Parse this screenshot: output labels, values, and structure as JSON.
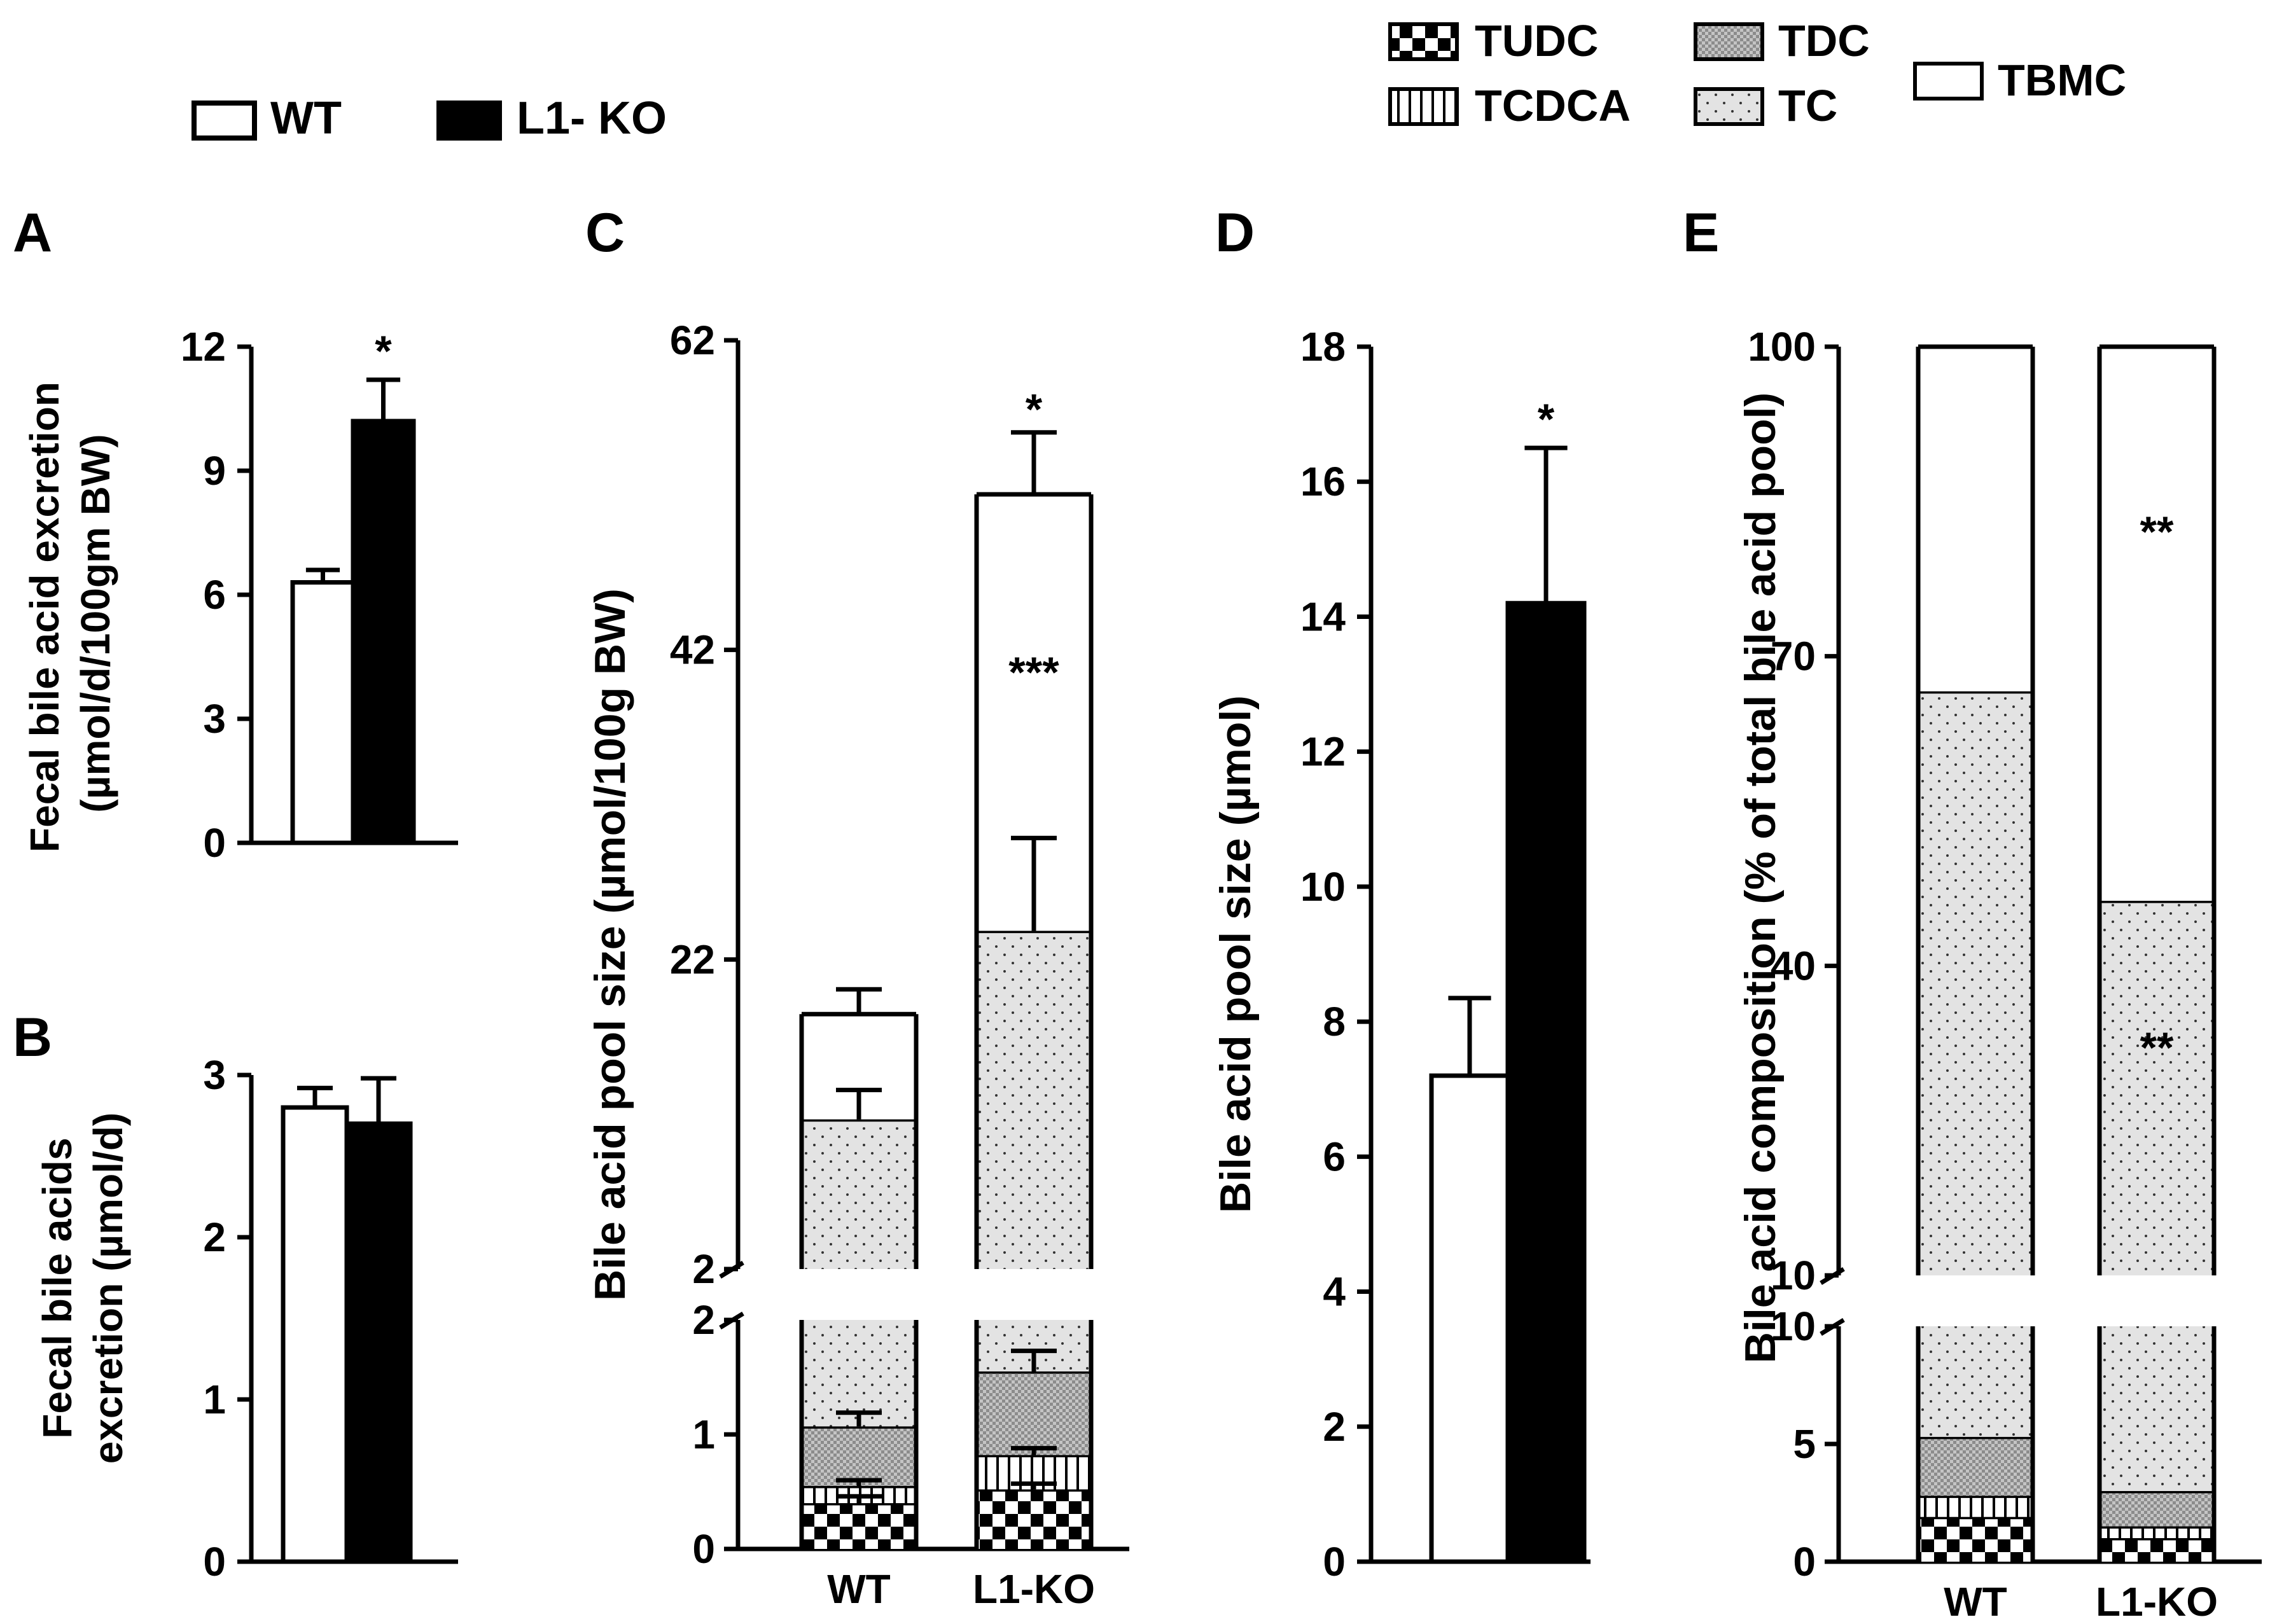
{
  "colors": {
    "wt": "#ffffff",
    "ko": "#000000",
    "ink": "#000000"
  },
  "legend_groups": {
    "items": [
      {
        "key": "wt",
        "label": "WT",
        "icon": "white-box-icon"
      },
      {
        "key": "ko",
        "label": "L1- KO",
        "icon": "black-box-icon"
      }
    ]
  },
  "legend_species": {
    "items": [
      {
        "key": "TUDC",
        "label": "TUDC",
        "icon": "checker-pattern-icon"
      },
      {
        "key": "TCDCA",
        "label": "TCDCA",
        "icon": "vertical-lines-pattern-icon"
      },
      {
        "key": "TDC",
        "label": "TDC",
        "icon": "crosshatch-gray-pattern-icon"
      },
      {
        "key": "TC",
        "label": "TC",
        "icon": "dotted-pattern-icon"
      },
      {
        "key": "TBMC",
        "label": "TBMC",
        "icon": "white-box-icon"
      }
    ]
  },
  "chart_data": [
    {
      "panel": "A",
      "type": "bar",
      "ylabel_line1": "Fecal bile acid excretion",
      "ylabel_line2": "(µmol/d/100gm  BW)",
      "ylim": [
        0,
        12
      ],
      "yticks": [
        0,
        3,
        6,
        9,
        12
      ],
      "categories": [
        "WT",
        "L1-KO"
      ],
      "values": [
        6.3,
        10.2
      ],
      "errors": [
        0.3,
        1.0
      ],
      "significance": [
        "",
        "*"
      ]
    },
    {
      "panel": "B",
      "type": "bar",
      "ylabel_line1": "Fecal bile acids",
      "ylabel_line2": "excretion  (µmol/d)",
      "ylim": [
        0,
        3
      ],
      "yticks": [
        0,
        1,
        2,
        3
      ],
      "categories": [
        "WT",
        "L1-KO"
      ],
      "values": [
        2.8,
        2.7
      ],
      "errors": [
        0.12,
        0.28
      ],
      "significance": [
        "",
        ""
      ]
    },
    {
      "panel": "C",
      "type": "bar",
      "stacked": true,
      "broken_axis": true,
      "ylabel": "Bile acid pool size (µmol/100g BW)",
      "lower_range": [
        0,
        2
      ],
      "lower_ticks": [
        0,
        1,
        2
      ],
      "upper_range": [
        2,
        62
      ],
      "upper_ticks": [
        2,
        22,
        42,
        62
      ],
      "categories": [
        "WT",
        "L1-KO"
      ],
      "series": [
        {
          "name": "TUDC",
          "values": [
            0.4,
            0.52
          ],
          "errors": [
            0.06,
            0.05
          ]
        },
        {
          "name": "TCDCA",
          "values": [
            0.15,
            0.3
          ],
          "errors": [
            0.05,
            0.06
          ]
        },
        {
          "name": "TDC",
          "values": [
            0.52,
            0.73
          ],
          "errors": [
            0.12,
            0.18
          ]
        },
        {
          "name": "TC",
          "values": [
            10.6,
            22.3
          ],
          "errors": [
            1.9,
            6.0
          ]
        },
        {
          "name": "TBMC",
          "values": [
            6.8,
            28.2
          ],
          "errors": [
            1.6,
            4.0
          ]
        }
      ],
      "tick_label_x": [
        "WT",
        "L1-KO"
      ],
      "significance_labels": [
        {
          "text": "*",
          "bar": "L1-KO",
          "at": 57.5
        },
        {
          "text": "***",
          "bar": "L1-KO",
          "at": 40.5
        }
      ]
    },
    {
      "panel": "D",
      "type": "bar",
      "ylabel": "Bile acid pool size (µmol)",
      "ylim": [
        0,
        18
      ],
      "yticks": [
        0,
        2,
        4,
        6,
        8,
        10,
        12,
        14,
        16,
        18
      ],
      "categories": [
        "WT",
        "L1-KO"
      ],
      "values": [
        7.2,
        14.2
      ],
      "errors": [
        1.15,
        2.3
      ],
      "significance": [
        "",
        "*"
      ]
    },
    {
      "panel": "E",
      "type": "bar",
      "stacked": true,
      "broken_axis": true,
      "ylabel": "Bile acid composition (% of total bile acid pool)",
      "lower_range": [
        0,
        10
      ],
      "lower_ticks": [
        0,
        5,
        10
      ],
      "upper_range": [
        10,
        100
      ],
      "upper_ticks": [
        10,
        40,
        70,
        100
      ],
      "categories": [
        "WT",
        "L1-KO"
      ],
      "series": [
        {
          "name": "TUDC",
          "values": [
            1.9,
            1.0
          ]
        },
        {
          "name": "TCDCA",
          "values": [
            0.9,
            0.5
          ]
        },
        {
          "name": "TDC",
          "values": [
            2.5,
            1.5
          ]
        },
        {
          "name": "TC",
          "values": [
            61.3,
            43.3
          ]
        },
        {
          "name": "TBMC",
          "values": [
            33.4,
            53.7
          ]
        }
      ],
      "tick_label_x": [
        "WT",
        "L1-KO"
      ],
      "significance_labels": [
        {
          "text": "**",
          "bar": "L1-KO",
          "at": 82
        },
        {
          "text": "**",
          "bar": "L1-KO",
          "at": 32
        }
      ]
    }
  ]
}
